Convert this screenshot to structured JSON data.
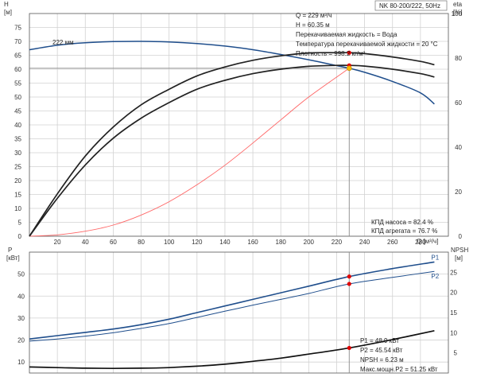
{
  "chart_data": [
    {
      "type": "line",
      "title": "NK 80-200/222, 50Hz",
      "xlabel": "Q [м³/ч]",
      "ylabel": "H [м]",
      "ylabel_units": "[м]",
      "ylabel_name": "H",
      "y2label": "eta [%]",
      "y2label_name": "eta",
      "y2label_units": "[%]",
      "xlim": [
        0,
        300
      ],
      "ylim": [
        0,
        80
      ],
      "y2lim": [
        0,
        100
      ],
      "x_ticks": [
        "20",
        "40",
        "60",
        "80",
        "100",
        "120",
        "140",
        "160",
        "180",
        "200",
        "220",
        "240",
        "260",
        "280"
      ],
      "x_ticks_values": [
        20,
        40,
        60,
        80,
        100,
        120,
        140,
        160,
        180,
        200,
        220,
        240,
        260,
        280
      ],
      "y_ticks": [
        "0",
        "5",
        "10",
        "15",
        "20",
        "25",
        "30",
        "35",
        "40",
        "45",
        "50",
        "55",
        "60",
        "65",
        "70",
        "75"
      ],
      "y_ticks_values": [
        0,
        5,
        10,
        15,
        20,
        25,
        30,
        35,
        40,
        45,
        50,
        55,
        60,
        65,
        70,
        75
      ],
      "y2_ticks": [
        "0",
        "20",
        "40",
        "60",
        "80",
        "100"
      ],
      "y2_ticks_values": [
        0,
        20,
        40,
        60,
        80,
        100
      ],
      "grid": true,
      "impeller_label": "222 мм",
      "duty_point": {
        "x": 229,
        "y": 60.35,
        "color": "#f5b800"
      },
      "series": [
        {
          "name": "",
          "color": "#1f4e8c",
          "axis": "y",
          "x": [
            0,
            20,
            40,
            60,
            80,
            100,
            120,
            140,
            160,
            180,
            200,
            220,
            229,
            240,
            260,
            280,
            290
          ],
          "values": [
            67,
            68.6,
            69.5,
            69.9,
            70,
            69.8,
            69.2,
            68.3,
            67,
            65.3,
            63.4,
            61.3,
            60.35,
            58.9,
            55.6,
            51.5,
            47.5
          ]
        },
        {
          "name": "",
          "color": "#ff6666",
          "axis": "y",
          "x": [
            0,
            20,
            40,
            60,
            80,
            100,
            120,
            140,
            160,
            180,
            200,
            229
          ],
          "values": [
            0,
            0.5,
            1.8,
            4,
            7.6,
            12.4,
            18.5,
            25.5,
            33.5,
            41.8,
            50,
            60.35
          ]
        },
        {
          "name": "",
          "color": "#222222",
          "axis": "y2",
          "x": [
            0,
            20,
            40,
            60,
            80,
            100,
            120,
            140,
            160,
            180,
            200,
            220,
            229,
            240,
            260,
            280,
            290
          ],
          "values": [
            0,
            19,
            36,
            49,
            59,
            66,
            72,
            76,
            79,
            81,
            82.3,
            82.4,
            82.4,
            82,
            80.5,
            78.5,
            77
          ]
        },
        {
          "name": "",
          "color": "#222222",
          "axis": "y2",
          "x": [
            0,
            20,
            40,
            60,
            80,
            100,
            120,
            140,
            160,
            180,
            200,
            220,
            229,
            240,
            260,
            280,
            290
          ],
          "values": [
            0,
            17,
            32,
            44,
            53,
            60,
            66,
            70,
            73,
            75,
            76.3,
            76.7,
            76.7,
            76.4,
            75,
            73,
            71.5
          ]
        }
      ],
      "eta_points": [
        {
          "x": 229,
          "y": 82.4,
          "color": "#e00000"
        },
        {
          "x": 229,
          "y": 76.7,
          "color": "#e00000"
        }
      ],
      "info_lines": [
        "Q = 229 м³/ч",
        "H = 60.35 м",
        "Перекачиваемая жидкость = Вода",
        "Температура перекачиваемой жидкости = 20 °C",
        "Плотность = 998.2 кг/м³"
      ],
      "efficiency_lines": [
        "КПД насоса = 82.4 %",
        "КПД агрегата = 76.7 %"
      ]
    },
    {
      "type": "line",
      "ylabel": "P [кВт]",
      "ylabel_name": "P",
      "ylabel_units": "[кВт]",
      "y2label": "NPSH [м]",
      "y2label_name": "NPSH",
      "y2label_units": "[м]",
      "xlim": [
        0,
        300
      ],
      "ylim": [
        5,
        60
      ],
      "y2lim": [
        0,
        30
      ],
      "y_ticks": [
        "10",
        "20",
        "30",
        "40",
        "50"
      ],
      "y_ticks_values": [
        10,
        20,
        30,
        40,
        50
      ],
      "y2_ticks": [
        "5",
        "10",
        "15",
        "20",
        "25"
      ],
      "y2_ticks_values": [
        5,
        10,
        15,
        20,
        25
      ],
      "grid": true,
      "series": [
        {
          "name": "P1",
          "color": "#1f4e8c",
          "axis": "y",
          "x": [
            0,
            20,
            40,
            60,
            80,
            100,
            120,
            140,
            160,
            180,
            200,
            229,
            260,
            290
          ],
          "values": [
            20.5,
            22,
            23.5,
            25,
            27,
            29.5,
            32.5,
            35.5,
            38.5,
            41.5,
            44.5,
            48.9,
            52.5,
            55.5
          ]
        },
        {
          "name": "P2",
          "color": "#1f4e8c",
          "axis": "y",
          "x": [
            0,
            20,
            40,
            60,
            80,
            100,
            120,
            140,
            160,
            180,
            200,
            229,
            260,
            290
          ],
          "values": [
            19.5,
            20.5,
            21.8,
            23.3,
            25.3,
            27.5,
            30.3,
            33.1,
            35.9,
            38.5,
            41.2,
            45.54,
            48.5,
            51.25
          ]
        },
        {
          "name": "",
          "color": "#111111",
          "axis": "y2",
          "x": [
            0,
            20,
            40,
            60,
            80,
            100,
            120,
            140,
            160,
            180,
            200,
            229,
            260,
            290
          ],
          "values": [
            1.5,
            1.35,
            1.2,
            1.15,
            1.2,
            1.35,
            1.7,
            2.2,
            2.9,
            3.7,
            4.7,
            6.23,
            8.3,
            10.5
          ]
        }
      ],
      "points": [
        {
          "x": 229,
          "y": 48.9,
          "axis": "y",
          "color": "#e00000"
        },
        {
          "x": 229,
          "y": 45.54,
          "axis": "y",
          "color": "#e00000"
        },
        {
          "x": 229,
          "y": 6.23,
          "axis": "y2",
          "color": "#e00000"
        }
      ],
      "info_lines": [
        "P1 = 48.9 кВт",
        "P2 = 45.54 кВт",
        "NPSH = 6.23 м",
        "Макс.мощн.P2 = 51.25 кВт"
      ]
    }
  ]
}
